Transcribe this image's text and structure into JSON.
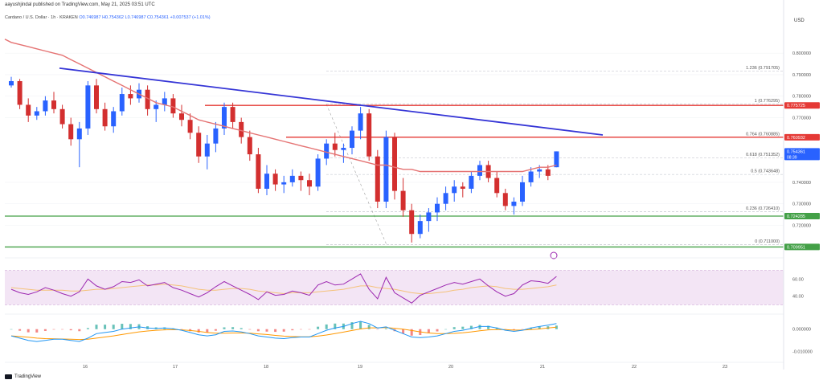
{
  "header": {
    "publish_line": "aayushjindal published on TradingView.com, May 21, 2025 03:51 UTC",
    "symbol_line": "Cardano / U.S. Dollar · 1h · KRAKEN",
    "ohlc": "O0.746987 H0.754362 L0.746987 C0.754361 +0.007537 (+1.01%)"
  },
  "footer": {
    "brand": "TradingView"
  },
  "colors": {
    "bull": "#2962ff",
    "bear": "#d32f2f",
    "ma": "#e57373",
    "trend": "#3535d6",
    "resistance": "#e53935",
    "support": "#43a047",
    "rsi": "#9c27b0",
    "macd": "#2196f3",
    "signal": "#ff9800"
  },
  "chart_data": {
    "type": "line",
    "price_axis": {
      "label": "USD",
      "ticks": [
        "0.800000",
        "0.790000",
        "0.780000",
        "0.770000",
        "0.740000",
        "0.730000",
        "0.720000"
      ],
      "ylim": [
        0.706,
        0.812
      ]
    },
    "x_axis": {
      "ticks": [
        "16",
        "17",
        "18",
        "19",
        "20",
        "21",
        "22",
        "23"
      ]
    },
    "price_series": [
      [
        0.785,
        0.789,
        0.784,
        0.787
      ],
      [
        0.787,
        0.788,
        0.774,
        0.776
      ],
      [
        0.776,
        0.779,
        0.768,
        0.771
      ],
      [
        0.771,
        0.775,
        0.769,
        0.773
      ],
      [
        0.773,
        0.78,
        0.771,
        0.778
      ],
      [
        0.778,
        0.782,
        0.772,
        0.774
      ],
      [
        0.774,
        0.776,
        0.765,
        0.767
      ],
      [
        0.767,
        0.77,
        0.757,
        0.76
      ],
      [
        0.76,
        0.768,
        0.747,
        0.765
      ],
      [
        0.765,
        0.787,
        0.762,
        0.785
      ],
      [
        0.785,
        0.788,
        0.772,
        0.774
      ],
      [
        0.774,
        0.777,
        0.764,
        0.766
      ],
      [
        0.766,
        0.775,
        0.763,
        0.773
      ],
      [
        0.773,
        0.784,
        0.771,
        0.781
      ],
      [
        0.781,
        0.785,
        0.776,
        0.779
      ],
      [
        0.779,
        0.786,
        0.777,
        0.783
      ],
      [
        0.783,
        0.785,
        0.771,
        0.774
      ],
      [
        0.774,
        0.778,
        0.768,
        0.776
      ],
      [
        0.776,
        0.782,
        0.773,
        0.779
      ],
      [
        0.779,
        0.781,
        0.77,
        0.772
      ],
      [
        0.772,
        0.776,
        0.766,
        0.769
      ],
      [
        0.769,
        0.772,
        0.76,
        0.763
      ],
      [
        0.763,
        0.766,
        0.749,
        0.752
      ],
      [
        0.752,
        0.762,
        0.746,
        0.758
      ],
      [
        0.758,
        0.768,
        0.754,
        0.765
      ],
      [
        0.765,
        0.777,
        0.762,
        0.775
      ],
      [
        0.775,
        0.777,
        0.765,
        0.768
      ],
      [
        0.768,
        0.77,
        0.758,
        0.761
      ],
      [
        0.761,
        0.764,
        0.75,
        0.753
      ],
      [
        0.753,
        0.756,
        0.735,
        0.737
      ],
      [
        0.737,
        0.748,
        0.734,
        0.744
      ],
      [
        0.744,
        0.746,
        0.736,
        0.739
      ],
      [
        0.739,
        0.743,
        0.735,
        0.74
      ],
      [
        0.74,
        0.746,
        0.738,
        0.743
      ],
      [
        0.743,
        0.745,
        0.736,
        0.741
      ],
      [
        0.741,
        0.744,
        0.734,
        0.738
      ],
      [
        0.738,
        0.753,
        0.736,
        0.751
      ],
      [
        0.751,
        0.76,
        0.748,
        0.758
      ],
      [
        0.758,
        0.763,
        0.752,
        0.755
      ],
      [
        0.755,
        0.758,
        0.749,
        0.756
      ],
      [
        0.756,
        0.766,
        0.753,
        0.764
      ],
      [
        0.764,
        0.775,
        0.76,
        0.772
      ],
      [
        0.772,
        0.774,
        0.75,
        0.752
      ],
      [
        0.752,
        0.755,
        0.728,
        0.731
      ],
      [
        0.731,
        0.764,
        0.728,
        0.761
      ],
      [
        0.761,
        0.763,
        0.732,
        0.736
      ],
      [
        0.736,
        0.742,
        0.724,
        0.727
      ],
      [
        0.727,
        0.73,
        0.712,
        0.716
      ],
      [
        0.716,
        0.725,
        0.714,
        0.722
      ],
      [
        0.722,
        0.728,
        0.717,
        0.726
      ],
      [
        0.726,
        0.733,
        0.722,
        0.73
      ],
      [
        0.73,
        0.738,
        0.727,
        0.735
      ],
      [
        0.735,
        0.741,
        0.731,
        0.738
      ],
      [
        0.738,
        0.74,
        0.733,
        0.737
      ],
      [
        0.737,
        0.745,
        0.735,
        0.743
      ],
      [
        0.743,
        0.75,
        0.741,
        0.748
      ],
      [
        0.748,
        0.75,
        0.74,
        0.742
      ],
      [
        0.742,
        0.745,
        0.733,
        0.735
      ],
      [
        0.735,
        0.737,
        0.727,
        0.729
      ],
      [
        0.729,
        0.733,
        0.725,
        0.731
      ],
      [
        0.731,
        0.743,
        0.729,
        0.74
      ],
      [
        0.74,
        0.747,
        0.738,
        0.745
      ],
      [
        0.745,
        0.748,
        0.742,
        0.746
      ],
      [
        0.746,
        0.748,
        0.741,
        0.743
      ],
      [
        0.746987,
        0.754362,
        0.746987,
        0.754361
      ]
    ],
    "ma_series": [
      0.805,
      0.804,
      0.803,
      0.802,
      0.801,
      0.8,
      0.799,
      0.797,
      0.795,
      0.793,
      0.791,
      0.789,
      0.787,
      0.785,
      0.783,
      0.781,
      0.779,
      0.777,
      0.776,
      0.775,
      0.773,
      0.771,
      0.769,
      0.768,
      0.767,
      0.766,
      0.765,
      0.764,
      0.763,
      0.762,
      0.761,
      0.76,
      0.759,
      0.758,
      0.757,
      0.756,
      0.755,
      0.754,
      0.753,
      0.752,
      0.751,
      0.75,
      0.749,
      0.748,
      0.748,
      0.747,
      0.746,
      0.746,
      0.745,
      0.745,
      0.745,
      0.745,
      0.745,
      0.745,
      0.745,
      0.745,
      0.745,
      0.745,
      0.745,
      0.745,
      0.745,
      0.746,
      0.747,
      0.747,
      0.748
    ],
    "trendline": {
      "start": [
        0,
        0.791
      ],
      "end": [
        64,
        0.762
      ]
    },
    "levels": [
      {
        "value": 0.775725,
        "label": "0.775725",
        "kind": "resistance"
      },
      {
        "value": 0.760932,
        "label": "0.760932",
        "kind": "resistance"
      },
      {
        "value": 0.754361,
        "label": "0.754361",
        "kind": "price",
        "sub": "08:39"
      },
      {
        "value": 0.724285,
        "label": "0.724285",
        "kind": "support"
      },
      {
        "value": 0.709951,
        "label": "0.709951",
        "kind": "support"
      }
    ],
    "fibonacci": [
      {
        "ratio": "1.236",
        "value": 0.791705,
        "label": "1.236 (0.791705)"
      },
      {
        "ratio": "1",
        "value": 0.776295,
        "label": "1 (0.776295)"
      },
      {
        "ratio": "0.764",
        "value": 0.760885,
        "label": "0.764 (0.760885)"
      },
      {
        "ratio": "0.618",
        "value": 0.751352,
        "label": "0.618 (0.751352)"
      },
      {
        "ratio": "0.5",
        "value": 0.743648,
        "label": "0.5 (0.743648)"
      },
      {
        "ratio": "0.236",
        "value": 0.72641,
        "label": "0.236 (0.726410)"
      },
      {
        "ratio": "0",
        "value": 0.711,
        "label": "0 (0.711000)"
      }
    ],
    "rsi": {
      "ticks": [
        "60.00",
        "40.00"
      ],
      "ylim": [
        20,
        80
      ],
      "band": [
        30,
        70
      ],
      "values": [
        48,
        44,
        42,
        45,
        50,
        47,
        43,
        40,
        45,
        60,
        52,
        48,
        51,
        57,
        56,
        59,
        52,
        54,
        56,
        50,
        47,
        43,
        39,
        44,
        51,
        57,
        52,
        47,
        42,
        36,
        45,
        41,
        42,
        46,
        44,
        41,
        53,
        57,
        53,
        54,
        60,
        66,
        48,
        37,
        62,
        44,
        38,
        32,
        41,
        45,
        49,
        53,
        56,
        54,
        57,
        60,
        52,
        45,
        40,
        43,
        53,
        58,
        57,
        55,
        63
      ],
      "signal": [
        50,
        49,
        48,
        47,
        47,
        47,
        47,
        46,
        46,
        47,
        48,
        48,
        49,
        50,
        51,
        52,
        53,
        53,
        54,
        53,
        52,
        50,
        48,
        47,
        47,
        48,
        49,
        49,
        48,
        46,
        45,
        44,
        43,
        44,
        44,
        44,
        45,
        46,
        47,
        48,
        50,
        52,
        52,
        50,
        49,
        48,
        46,
        44,
        43,
        43,
        44,
        45,
        47,
        48,
        50,
        51,
        52,
        51,
        49,
        48,
        48,
        49,
        50,
        51,
        53
      ]
    },
    "macd": {
      "ticks": [
        "0.000000",
        "-0.010000"
      ],
      "ylim": [
        -0.013,
        0.006
      ],
      "macd": [
        -0.003,
        -0.004,
        -0.005,
        -0.0055,
        -0.005,
        -0.0045,
        -0.0045,
        -0.005,
        -0.0055,
        -0.004,
        -0.002,
        -0.0015,
        -0.001,
        0,
        0.0005,
        0.001,
        0.0005,
        0.0003,
        0.0005,
        0.0002,
        -0.0005,
        -0.0015,
        -0.0025,
        -0.003,
        -0.0025,
        -0.001,
        -0.0008,
        -0.0012,
        -0.002,
        -0.003,
        -0.0035,
        -0.004,
        -0.0042,
        -0.0038,
        -0.0035,
        -0.0035,
        -0.002,
        -0.0005,
        0.0005,
        0.0012,
        0.0025,
        0.0035,
        0.0025,
        0.0005,
        0.001,
        -0.0005,
        -0.002,
        -0.0035,
        -0.0038,
        -0.0035,
        -0.003,
        -0.002,
        -0.001,
        -0.0005,
        0.0003,
        0.0012,
        0.0012,
        0.0005,
        -0.0005,
        -0.001,
        -0.0005,
        0.0005,
        0.0012,
        0.0018,
        0.0025
      ],
      "signal": [
        -0.003,
        -0.0033,
        -0.0036,
        -0.004,
        -0.0042,
        -0.0043,
        -0.0044,
        -0.0045,
        -0.0046,
        -0.0045,
        -0.004,
        -0.0035,
        -0.003,
        -0.0024,
        -0.0018,
        -0.0012,
        -0.0008,
        -0.0005,
        -0.0003,
        -0.0002,
        -0.0003,
        -0.0006,
        -0.001,
        -0.0015,
        -0.0018,
        -0.0018,
        -0.0017,
        -0.0017,
        -0.0018,
        -0.0021,
        -0.0024,
        -0.0028,
        -0.0031,
        -0.0033,
        -0.0034,
        -0.0034,
        -0.0031,
        -0.0026,
        -0.002,
        -0.0013,
        -0.0006,
        0.0001,
        0.0006,
        0.0006,
        0.0007,
        0.0004,
        0,
        -0.0006,
        -0.0012,
        -0.0017,
        -0.002,
        -0.002,
        -0.0019,
        -0.0016,
        -0.0012,
        -0.0007,
        -0.0003,
        -0.0002,
        -0.0002,
        -0.0004,
        -0.0004,
        -0.0002,
        0.0001,
        0.0005,
        0.0009
      ]
    }
  }
}
